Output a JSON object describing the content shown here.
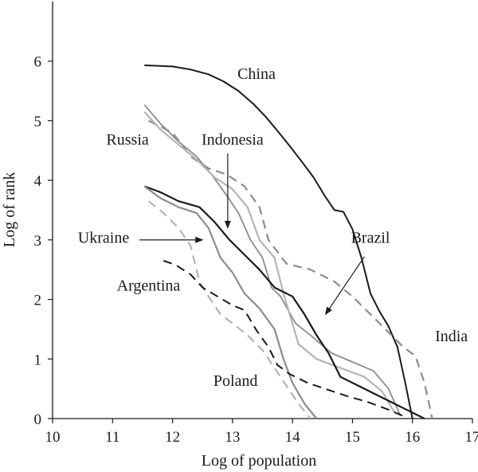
{
  "chart_data": {
    "type": "line",
    "title": "",
    "xlabel": "Log of population",
    "ylabel": "Log of rank",
    "xlim": [
      10,
      17
    ],
    "ylim": [
      0,
      7
    ],
    "xticks": [
      10,
      11,
      12,
      13,
      14,
      15,
      16,
      17
    ],
    "yticks": [
      0,
      1,
      2,
      3,
      4,
      5,
      6
    ],
    "grid": false,
    "legend": "none",
    "series": [
      {
        "name": "China",
        "color": "#1a1a1a",
        "dash": "solid",
        "width": 2,
        "points": [
          [
            11.53,
            5.93
          ],
          [
            12.0,
            5.91
          ],
          [
            12.3,
            5.86
          ],
          [
            12.6,
            5.78
          ],
          [
            12.85,
            5.66
          ],
          [
            13.1,
            5.5
          ],
          [
            13.35,
            5.28
          ],
          [
            13.55,
            5.07
          ],
          [
            13.75,
            4.83
          ],
          [
            13.95,
            4.58
          ],
          [
            14.15,
            4.32
          ],
          [
            14.35,
            4.05
          ],
          [
            14.55,
            3.72
          ],
          [
            14.7,
            3.5
          ],
          [
            14.85,
            3.47
          ],
          [
            15.0,
            3.18
          ],
          [
            15.15,
            2.7
          ],
          [
            15.3,
            2.1
          ],
          [
            15.45,
            1.8
          ],
          [
            15.6,
            1.55
          ],
          [
            15.75,
            1.2
          ],
          [
            15.88,
            0.6
          ],
          [
            16.0,
            0.0
          ]
        ]
      },
      {
        "name": "India",
        "color": "#8c8c8c",
        "dash": "dashed",
        "width": 2.2,
        "points": [
          [
            11.6,
            5.0
          ],
          [
            12.0,
            4.8
          ],
          [
            12.3,
            4.4
          ],
          [
            12.6,
            4.2
          ],
          [
            12.9,
            4.1
          ],
          [
            13.2,
            3.9
          ],
          [
            13.45,
            3.55
          ],
          [
            13.6,
            3.0
          ],
          [
            13.9,
            2.6
          ],
          [
            14.3,
            2.5
          ],
          [
            14.7,
            2.3
          ],
          [
            15.0,
            2.05
          ],
          [
            15.3,
            1.75
          ],
          [
            15.6,
            1.45
          ],
          [
            15.85,
            1.2
          ],
          [
            16.05,
            1.05
          ],
          [
            16.2,
            0.6
          ],
          [
            16.33,
            0.0
          ]
        ]
      },
      {
        "name": "Russia",
        "color": "#8c8c8c",
        "dash": "solid",
        "width": 1.8,
        "points": [
          [
            11.53,
            5.27
          ],
          [
            11.8,
            4.95
          ],
          [
            12.1,
            4.65
          ],
          [
            12.4,
            4.4
          ],
          [
            12.65,
            4.1
          ],
          [
            12.9,
            3.75
          ],
          [
            13.1,
            3.45
          ],
          [
            13.3,
            3.0
          ],
          [
            13.5,
            2.7
          ],
          [
            13.65,
            2.2
          ],
          [
            13.8,
            2.05
          ],
          [
            14.05,
            1.6
          ],
          [
            14.3,
            1.4
          ],
          [
            14.65,
            1.1
          ],
          [
            15.0,
            0.95
          ],
          [
            15.35,
            0.8
          ],
          [
            15.6,
            0.5
          ],
          [
            15.8,
            0.05
          ]
        ]
      },
      {
        "name": "Indonesia",
        "color": "#b4b4b4",
        "dash": "solid",
        "width": 2.2,
        "points": [
          [
            11.53,
            5.15
          ],
          [
            11.8,
            4.85
          ],
          [
            12.1,
            4.6
          ],
          [
            12.4,
            4.35
          ],
          [
            12.7,
            4.05
          ],
          [
            13.0,
            3.85
          ],
          [
            13.25,
            3.55
          ],
          [
            13.45,
            3.0
          ],
          [
            13.7,
            2.7
          ],
          [
            13.85,
            2.1
          ],
          [
            14.1,
            1.25
          ],
          [
            14.4,
            1.0
          ],
          [
            14.8,
            0.85
          ],
          [
            15.2,
            0.7
          ],
          [
            15.5,
            0.45
          ],
          [
            15.7,
            0.1
          ]
        ]
      },
      {
        "name": "Brazil",
        "color": "#1a1a1a",
        "dash": "solid",
        "width": 2.2,
        "points": [
          [
            11.53,
            3.9
          ],
          [
            11.8,
            3.8
          ],
          [
            12.1,
            3.65
          ],
          [
            12.45,
            3.55
          ],
          [
            12.7,
            3.3
          ],
          [
            12.95,
            3.0
          ],
          [
            13.2,
            2.75
          ],
          [
            13.45,
            2.5
          ],
          [
            13.7,
            2.2
          ],
          [
            14.0,
            2.05
          ],
          [
            14.2,
            1.75
          ],
          [
            14.4,
            1.4
          ],
          [
            14.6,
            1.1
          ],
          [
            14.8,
            0.7
          ],
          [
            15.2,
            0.5
          ],
          [
            15.6,
            0.3
          ],
          [
            16.2,
            0.0
          ]
        ]
      },
      {
        "name": "Ukraine",
        "color": "#8c8c8c",
        "dash": "solid",
        "width": 2.2,
        "points": [
          [
            11.53,
            3.9
          ],
          [
            11.8,
            3.7
          ],
          [
            12.1,
            3.55
          ],
          [
            12.4,
            3.45
          ],
          [
            12.6,
            3.2
          ],
          [
            12.8,
            2.7
          ],
          [
            13.0,
            2.45
          ],
          [
            13.2,
            2.1
          ],
          [
            13.45,
            1.85
          ],
          [
            13.7,
            1.5
          ],
          [
            13.85,
            1.0
          ],
          [
            14.0,
            0.6
          ],
          [
            14.2,
            0.25
          ],
          [
            14.4,
            0.0
          ]
        ]
      },
      {
        "name": "Argentina",
        "color": "#b4b4b4",
        "dash": "dashed",
        "width": 2.2,
        "points": [
          [
            11.6,
            3.65
          ],
          [
            11.85,
            3.45
          ],
          [
            12.1,
            3.2
          ],
          [
            12.3,
            2.9
          ],
          [
            12.45,
            2.3
          ],
          [
            12.6,
            2.05
          ],
          [
            12.8,
            1.75
          ],
          [
            13.0,
            1.6
          ],
          [
            13.25,
            1.4
          ],
          [
            13.5,
            1.15
          ],
          [
            13.7,
            0.85
          ],
          [
            13.9,
            0.55
          ],
          [
            14.1,
            0.25
          ],
          [
            14.3,
            0.0
          ]
        ]
      },
      {
        "name": "Poland",
        "color": "#1a1a1a",
        "dash": "dashed",
        "width": 2,
        "points": [
          [
            11.85,
            2.65
          ],
          [
            12.05,
            2.58
          ],
          [
            12.3,
            2.42
          ],
          [
            12.5,
            2.2
          ],
          [
            12.75,
            2.05
          ],
          [
            13.0,
            1.9
          ],
          [
            13.2,
            1.82
          ],
          [
            13.4,
            1.48
          ],
          [
            13.6,
            1.2
          ],
          [
            13.75,
            0.9
          ],
          [
            13.95,
            0.75
          ],
          [
            14.25,
            0.6
          ],
          [
            14.6,
            0.48
          ],
          [
            14.9,
            0.38
          ],
          [
            15.25,
            0.28
          ],
          [
            15.6,
            0.15
          ],
          [
            15.9,
            0.02
          ]
        ]
      }
    ],
    "annotations": [
      {
        "text": "China",
        "x": 13.4,
        "y": 5.7
      },
      {
        "text": "Russia",
        "x": 11.25,
        "y": 4.6
      },
      {
        "text": "Indonesia",
        "x": 13.0,
        "y": 4.6
      },
      {
        "text": "Brazil",
        "x": 15.3,
        "y": 2.95
      },
      {
        "text": "India",
        "x": 16.65,
        "y": 1.3
      },
      {
        "text": "Ukraine",
        "x": 10.85,
        "y": 2.95
      },
      {
        "text": "Argentina",
        "x": 11.6,
        "y": 2.15
      },
      {
        "text": "Poland",
        "x": 13.05,
        "y": 0.55
      }
    ]
  }
}
